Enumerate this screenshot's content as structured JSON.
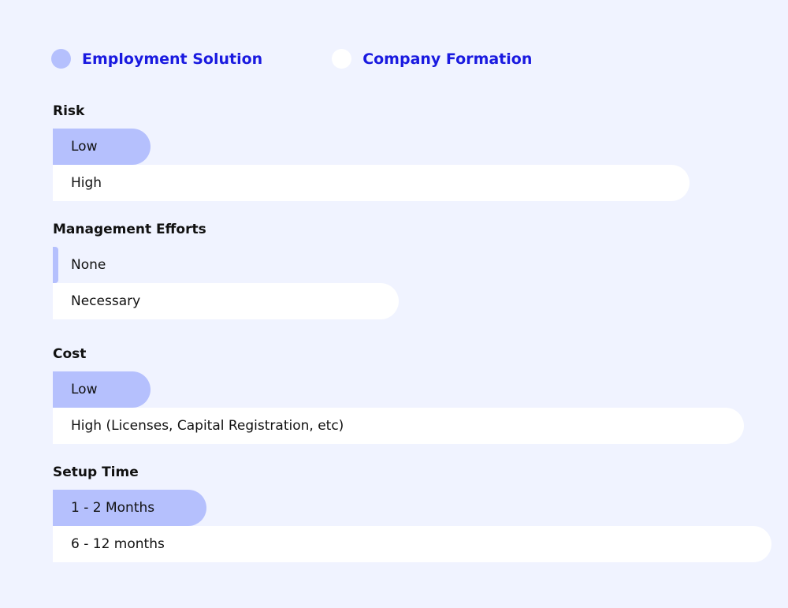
{
  "colors": {
    "background": "#f0f3ff",
    "employment": "#b5c0fd",
    "company": "#ffffff",
    "legend_text": "#1a1ae0"
  },
  "chart_data": {
    "type": "bar",
    "orientation": "horizontal",
    "legend": {
      "placement": "top-left",
      "entries": [
        "Employment Solution",
        "Company Formation"
      ]
    },
    "value_note": "relative bar length, longest = 100",
    "groups": [
      {
        "title": "Risk",
        "bars": [
          {
            "series": "Employment Solution",
            "label": "Low",
            "value": 13.6
          },
          {
            "series": "Company Formation",
            "label": "High",
            "value": 88.6
          }
        ]
      },
      {
        "title": "Management Efforts",
        "bars": [
          {
            "series": "Employment Solution",
            "label": "None",
            "value": 0.8
          },
          {
            "series": "Company Formation",
            "label": "Necessary",
            "value": 48.1
          }
        ]
      },
      {
        "title": "Cost",
        "bars": [
          {
            "series": "Employment Solution",
            "label": "Low",
            "value": 13.6
          },
          {
            "series": "Company Formation",
            "label": "High (Licenses, Capital Registration, etc)",
            "value": 96.2
          }
        ]
      },
      {
        "title": "Setup Time",
        "bars": [
          {
            "series": "Employment Solution",
            "label": "1 - 2 Months",
            "value": 21.4
          },
          {
            "series": "Company Formation",
            "label": "6 - 12 months",
            "value": 100
          }
        ]
      }
    ]
  }
}
